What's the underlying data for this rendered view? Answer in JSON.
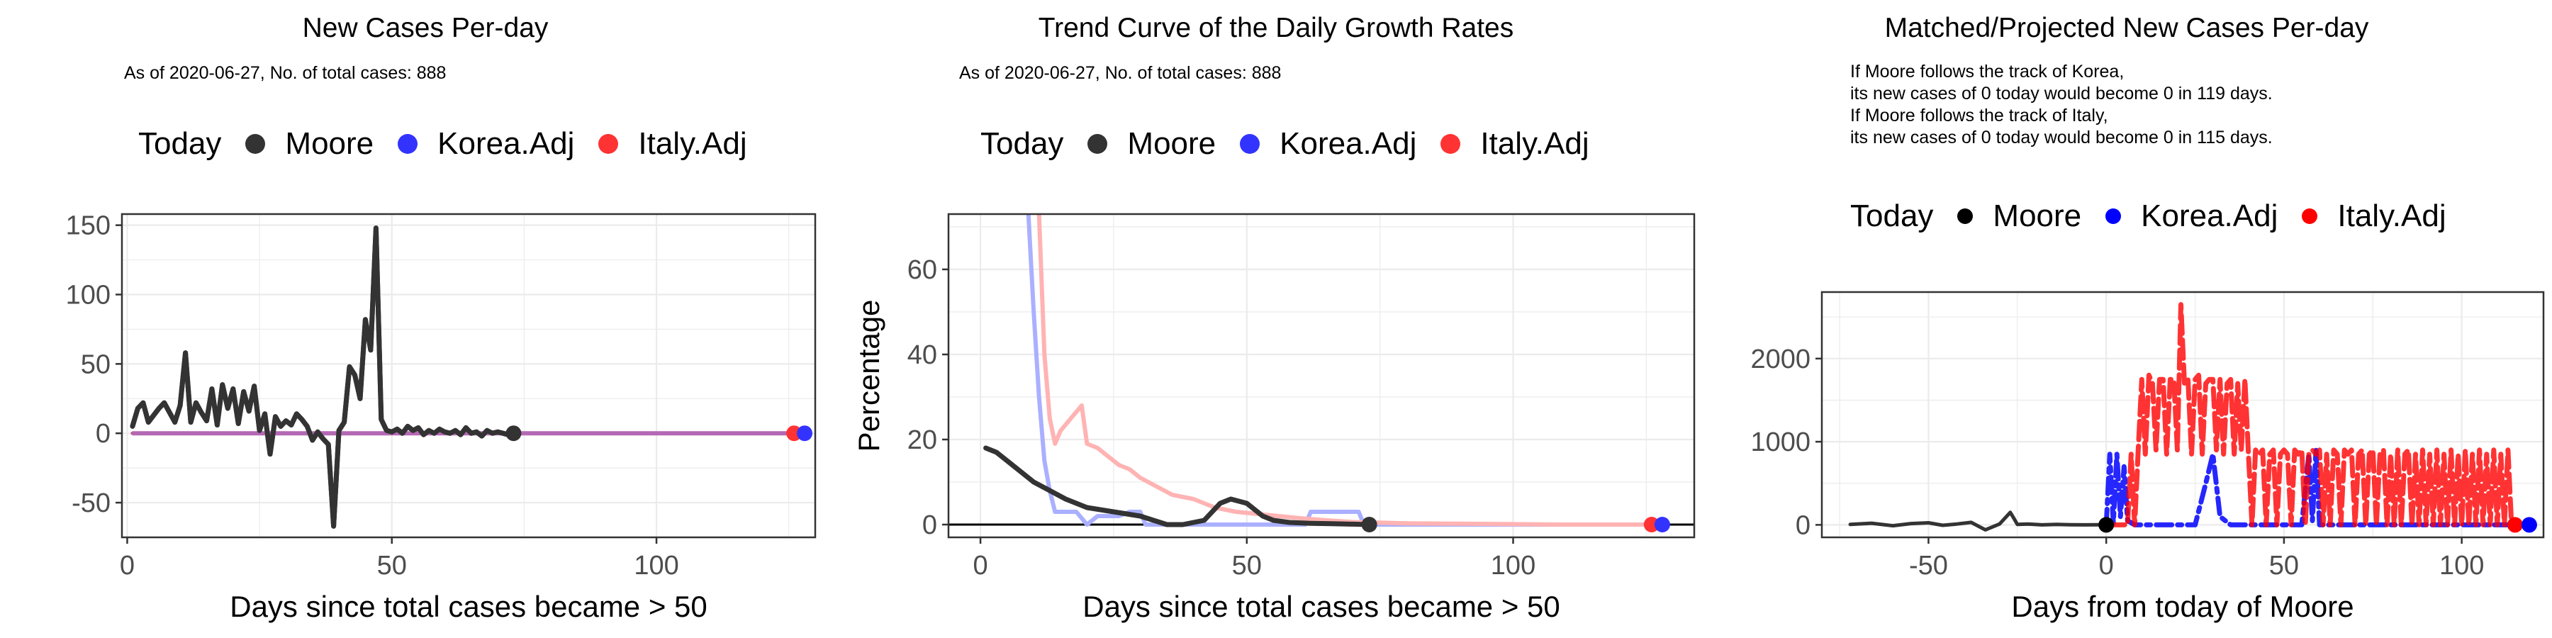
{
  "chart_data": [
    {
      "type": "line",
      "title": "New Cases Per-day",
      "subtitle": "As of 2020-06-27, No. of total cases: 888",
      "xlabel": "Days since total cases became > 50",
      "ylabel": "",
      "xlim": [
        -1,
        130
      ],
      "ylim": [
        -75,
        158
      ],
      "xticks": [
        0,
        50,
        100
      ],
      "yticks": [
        -50,
        0,
        50,
        100,
        150
      ],
      "grid": true,
      "legend": {
        "title": "Today",
        "position": "top",
        "entries": [
          "Moore",
          "Korea.Adj",
          "Italy.Adj"
        ]
      },
      "series": [
        {
          "name": "Moore",
          "color": "#333333",
          "x": [
            1,
            2,
            3,
            4,
            5,
            6,
            7,
            8,
            9,
            10,
            11,
            12,
            13,
            14,
            15,
            16,
            17,
            18,
            19,
            20,
            21,
            22,
            23,
            24,
            25,
            26,
            27,
            28,
            29,
            30,
            31,
            32,
            33,
            34,
            35,
            36,
            37,
            38,
            39,
            40,
            41,
            42,
            43,
            44,
            45,
            46,
            47,
            48,
            49,
            50,
            51,
            52,
            53,
            54,
            55,
            56,
            57,
            58,
            59,
            60,
            61,
            62,
            63,
            64,
            65,
            66,
            67,
            68,
            69,
            70,
            71,
            72,
            73
          ],
          "y": [
            5,
            18,
            22,
            8,
            13,
            18,
            22,
            15,
            8,
            20,
            58,
            8,
            22,
            15,
            9,
            32,
            6,
            35,
            18,
            32,
            7,
            30,
            16,
            34,
            2,
            14,
            -15,
            12,
            5,
            9,
            6,
            14,
            10,
            5,
            -5,
            1,
            -4,
            -8,
            -67,
            2,
            8,
            48,
            42,
            25,
            82,
            60,
            148,
            10,
            2,
            1,
            3,
            0,
            5,
            2,
            4,
            -1,
            2,
            0,
            3,
            1,
            0,
            2,
            -1,
            4,
            0,
            1,
            -2,
            2,
            0,
            1,
            0,
            -1,
            0
          ]
        },
        {
          "name": "Korea.Adj",
          "color": "#3333ff",
          "x": [
            1,
            128
          ],
          "y": [
            0,
            0
          ]
        },
        {
          "name": "Italy.Adj",
          "color": "#ff3333",
          "x": [
            1,
            126
          ],
          "y": [
            0,
            0
          ]
        }
      ],
      "today_points": [
        {
          "name": "Moore",
          "x": 73,
          "y": 0
        },
        {
          "name": "Korea.Adj",
          "x": 128,
          "y": 0
        },
        {
          "name": "Italy.Adj",
          "x": 126,
          "y": 0
        }
      ]
    },
    {
      "type": "line",
      "title": "Trend Curve of the Daily Growth Rates",
      "subtitle": "As of 2020-06-27, No. of total cases: 888",
      "xlabel": "Days since total cases became > 50",
      "ylabel": "Percentage",
      "xlim": [
        -6,
        134
      ],
      "ylim": [
        -3,
        73
      ],
      "xticks": [
        0,
        50,
        100
      ],
      "yticks": [
        0,
        20,
        40,
        60
      ],
      "grid": true,
      "hline": 0,
      "legend": {
        "title": "Today",
        "position": "top",
        "entries": [
          "Moore",
          "Korea.Adj",
          "Italy.Adj"
        ]
      },
      "series": [
        {
          "name": "Moore",
          "color": "#333333",
          "x": [
            1,
            3,
            5,
            8,
            10,
            13,
            16,
            20,
            25,
            30,
            35,
            38,
            42,
            45,
            47,
            50,
            53,
            55,
            58,
            62,
            66,
            70,
            73
          ],
          "y": [
            18,
            17,
            15,
            12,
            10,
            8,
            6,
            4,
            3,
            2,
            0,
            0,
            1,
            5,
            6,
            5,
            2,
            1,
            0.5,
            0.3,
            0.2,
            0.1,
            0
          ]
        },
        {
          "name": "Korea.Adj",
          "color": "#aab0ff",
          "x": [
            9,
            10,
            11,
            12,
            13,
            14,
            16,
            18,
            20,
            22,
            24,
            26,
            28,
            30,
            31,
            32,
            34,
            36,
            40,
            44,
            48,
            52,
            55,
            58,
            61,
            62,
            65,
            68,
            70,
            71,
            72,
            75,
            80,
            90,
            100,
            110,
            120,
            128
          ],
          "y": [
            73,
            50,
            30,
            15,
            8,
            3,
            3,
            3,
            0,
            2,
            2,
            2,
            3,
            3,
            0,
            0,
            0,
            0,
            0,
            0,
            0,
            0,
            0,
            0,
            0,
            3,
            3,
            3,
            3,
            3,
            0,
            0,
            0,
            0,
            0,
            0,
            0,
            0
          ]
        },
        {
          "name": "Italy.Adj",
          "color": "#ffb3b3",
          "x": [
            11,
            12,
            13,
            14,
            15,
            17,
            19,
            20,
            22,
            24,
            26,
            28,
            30,
            33,
            36,
            40,
            44,
            48,
            52,
            56,
            60,
            65,
            70,
            80,
            90,
            100,
            110,
            120,
            126
          ],
          "y": [
            73,
            40,
            25,
            19,
            22,
            25,
            28,
            19,
            18,
            16,
            14,
            13,
            11,
            9,
            7,
            6,
            4,
            3,
            2.5,
            2,
            1.5,
            1,
            0.6,
            0.3,
            0.2,
            0.1,
            0,
            0,
            0
          ]
        }
      ],
      "today_points": [
        {
          "name": "Moore",
          "x": 73,
          "y": 0
        },
        {
          "name": "Korea.Adj",
          "x": 128,
          "y": 0
        },
        {
          "name": "Italy.Adj",
          "x": 126,
          "y": 0
        }
      ]
    },
    {
      "type": "line",
      "title": "Matched/Projected New Cases Per-day",
      "subtitle": "If Moore follows the track of Korea,\nits new cases of 0 today would become 0 in 119 days.\nIf Moore follows the track of Italy,\nits new cases of 0 today would become 0 in 115 days.",
      "xlabel": "Days from today of Moore",
      "ylabel": "",
      "xlim": [
        -80,
        123
      ],
      "ylim": [
        -150,
        2800
      ],
      "xticks": [
        -50,
        0,
        50,
        100
      ],
      "yticks": [
        0,
        1000,
        2000
      ],
      "grid": true,
      "legend": {
        "title": "Today",
        "position": "top",
        "entries": [
          "Moore",
          "Korea.Adj",
          "Italy.Adj"
        ]
      },
      "series": [
        {
          "name": "Moore",
          "color": "#333333",
          "x": [
            -72,
            -66,
            -60,
            -55,
            -50,
            -46,
            -42,
            -38,
            -34,
            -30,
            -27,
            -26,
            -25,
            -22,
            -18,
            -14,
            -10,
            -6,
            -2,
            0
          ],
          "y": [
            5,
            20,
            -10,
            15,
            25,
            -5,
            10,
            30,
            -60,
            10,
            150,
            80,
            5,
            10,
            0,
            5,
            2,
            0,
            1,
            0
          ]
        },
        {
          "name": "Korea.Adj",
          "color": "#0000ff",
          "x": [
            0,
            1,
            2,
            3,
            4,
            5,
            6,
            8,
            10,
            12,
            14,
            16,
            18,
            20,
            22,
            25,
            28,
            30,
            32,
            35,
            40,
            45,
            50,
            55,
            57,
            58,
            59,
            60,
            62,
            65,
            70,
            80,
            90,
            100,
            110,
            119
          ],
          "y": [
            0,
            850,
            20,
            850,
            100,
            700,
            50,
            0,
            0,
            0,
            0,
            0,
            0,
            0,
            0,
            0,
            500,
            850,
            100,
            0,
            0,
            0,
            0,
            0,
            850,
            50,
            900,
            0,
            0,
            0,
            0,
            0,
            0,
            0,
            0,
            0
          ]
        },
        {
          "name": "Italy.Adj",
          "color": "#ff0000",
          "x": [
            0,
            6,
            7,
            8,
            9,
            10,
            11,
            12,
            13,
            14,
            15,
            16,
            17,
            18,
            19,
            20,
            21,
            22,
            23,
            24,
            25,
            26,
            27,
            28,
            29,
            30,
            31,
            32,
            33,
            34,
            35,
            36,
            37,
            38,
            39,
            40,
            41,
            42,
            43,
            44,
            45,
            46,
            47,
            48,
            49,
            50,
            51,
            52,
            53,
            54,
            55,
            56,
            57,
            58,
            59,
            60,
            61,
            62,
            63,
            64,
            65,
            66,
            67,
            68,
            69,
            70,
            71,
            72,
            73,
            74,
            75,
            76,
            77,
            78,
            79,
            80,
            81,
            82,
            83,
            84,
            85,
            86,
            87,
            88,
            89,
            90,
            91,
            92,
            93,
            94,
            95,
            96,
            97,
            98,
            99,
            100,
            101,
            102,
            103,
            104,
            105,
            106,
            107,
            108,
            109,
            110,
            111,
            112,
            113,
            114,
            115
          ],
          "y": [
            0,
            0,
            850,
            0,
            900,
            1750,
            850,
            1800,
            1700,
            900,
            1750,
            1750,
            850,
            1750,
            1750,
            900,
            2650,
            1700,
            1750,
            850,
            1750,
            1800,
            850,
            1700,
            1750,
            1750,
            900,
            1750,
            850,
            1700,
            1750,
            850,
            1700,
            900,
            1750,
            850,
            0,
            900,
            850,
            900,
            0,
            850,
            900,
            0,
            850,
            900,
            850,
            0,
            900,
            850,
            900,
            0,
            850,
            900,
            850,
            900,
            0,
            850,
            0,
            900,
            850,
            0,
            900,
            850,
            900,
            0,
            850,
            900,
            0,
            850,
            900,
            0,
            850,
            900,
            0,
            850,
            0,
            900,
            0,
            850,
            900,
            0,
            850,
            0,
            900,
            0,
            850,
            0,
            900,
            0,
            850,
            0,
            900,
            0,
            850,
            0,
            900,
            0,
            850,
            0,
            900,
            0,
            850,
            0,
            900,
            0,
            850,
            0,
            900,
            0,
            0
          ]
        }
      ],
      "today_points": [
        {
          "name": "Moore",
          "x": 0,
          "y": 0
        },
        {
          "name": "Korea.Adj",
          "x": 119,
          "y": 0
        },
        {
          "name": "Italy.Adj",
          "x": 115,
          "y": 0
        }
      ]
    }
  ]
}
